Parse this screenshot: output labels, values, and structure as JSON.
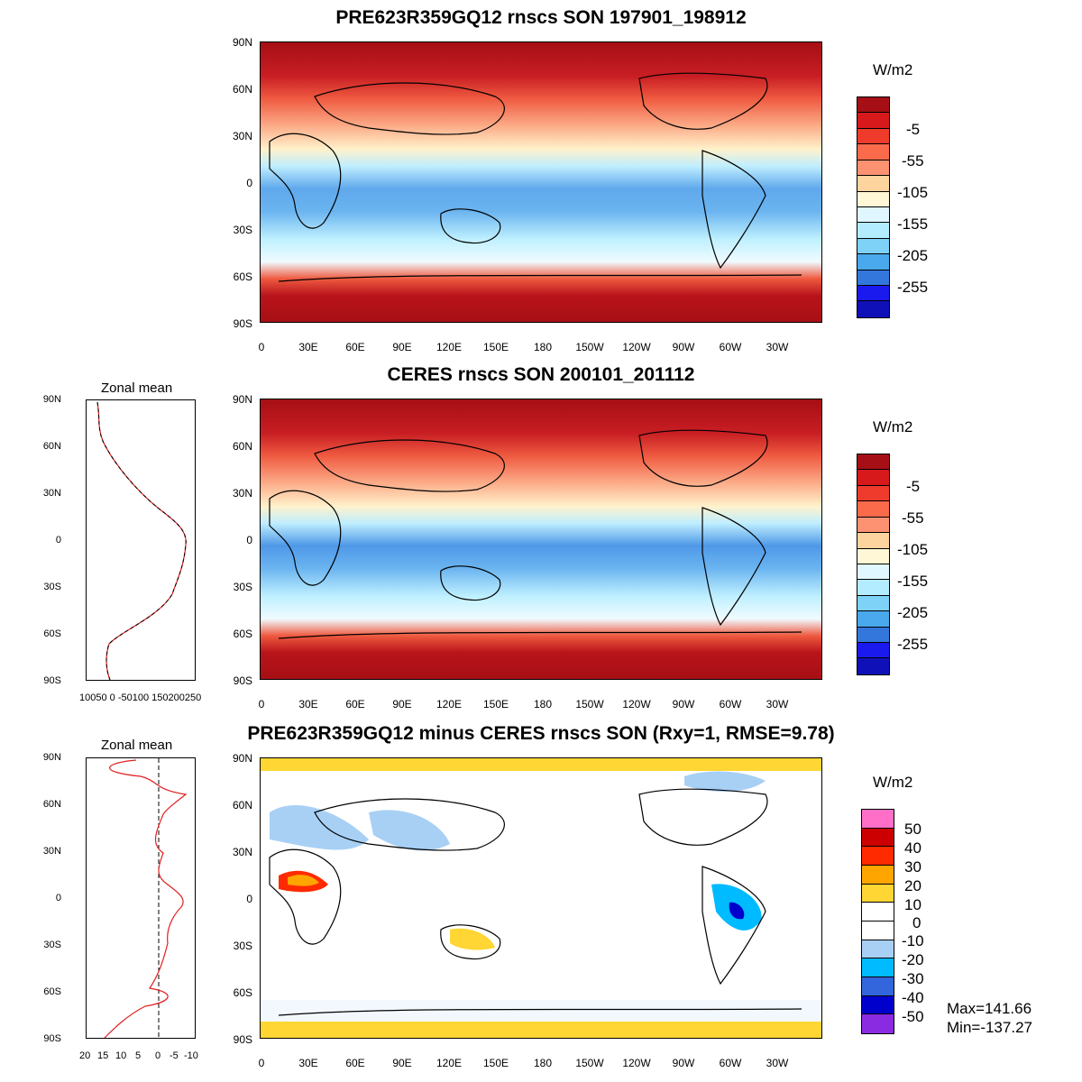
{
  "panels": {
    "model": {
      "title": "PRE623R359GQ12 rnscs SON 197901_198912",
      "unit": "W/m2",
      "colorbar_labels": [
        "-5",
        "-55",
        "-105",
        "-155",
        "-205",
        "-255"
      ],
      "colorbar_colors": [
        "#a50f15",
        "#d7191c",
        "#ef3b2c",
        "#fb6a4a",
        "#fc9272",
        "#fdd49e",
        "#fff7d6",
        "#e0f7ff",
        "#b3ecff",
        "#7fd2f7",
        "#4aa8ec",
        "#3377dd",
        "#1a1aee",
        "#1010b8"
      ]
    },
    "obs": {
      "title": "CERES rnscs SON 200101_201112",
      "unit": "W/m2",
      "colorbar_labels": [
        "-5",
        "-55",
        "-105",
        "-155",
        "-205",
        "-255"
      ],
      "colorbar_colors": [
        "#a50f15",
        "#d7191c",
        "#ef3b2c",
        "#fb6a4a",
        "#fc9272",
        "#fdd49e",
        "#fff7d6",
        "#e0f7ff",
        "#b3ecff",
        "#7fd2f7",
        "#4aa8ec",
        "#3377dd",
        "#1a1aee",
        "#1010b8"
      ],
      "zonal_title": "Zonal mean",
      "zonal_xlabels": "10050  0  -50100 150200250"
    },
    "diff": {
      "title": "PRE623R359GQ12 minus CERES rnscs SON (Rxy=1, RMSE=9.78)",
      "unit": "W/m2",
      "colorbar_labels": [
        "50",
        "40",
        "30",
        "20",
        "10",
        "0",
        "-10",
        "-20",
        "-30",
        "-40",
        "-50"
      ],
      "colorbar_colors": [
        "#ff6ec7",
        "#cc0000",
        "#ff2a00",
        "#ffa500",
        "#ffd633",
        "#ffffff",
        "#ffffff",
        "#a8d0f5",
        "#00bbff",
        "#3366dd",
        "#0000cc",
        "#8a2be2"
      ],
      "zonal_title": "Zonal mean",
      "zonal_xlabels": [
        "20",
        "15",
        "10",
        "5",
        "0",
        "-5",
        "-10"
      ],
      "max_text": "Max=141.66",
      "min_text": "Min=-137.27"
    }
  },
  "axes": {
    "lat_labels": [
      "90N",
      "60N",
      "30N",
      "0",
      "30S",
      "60S",
      "90S"
    ],
    "lon_labels": [
      "0",
      "30E",
      "60E",
      "90E",
      "120E",
      "150E",
      "180",
      "150W",
      "120W",
      "90W",
      "60W",
      "30W"
    ]
  }
}
